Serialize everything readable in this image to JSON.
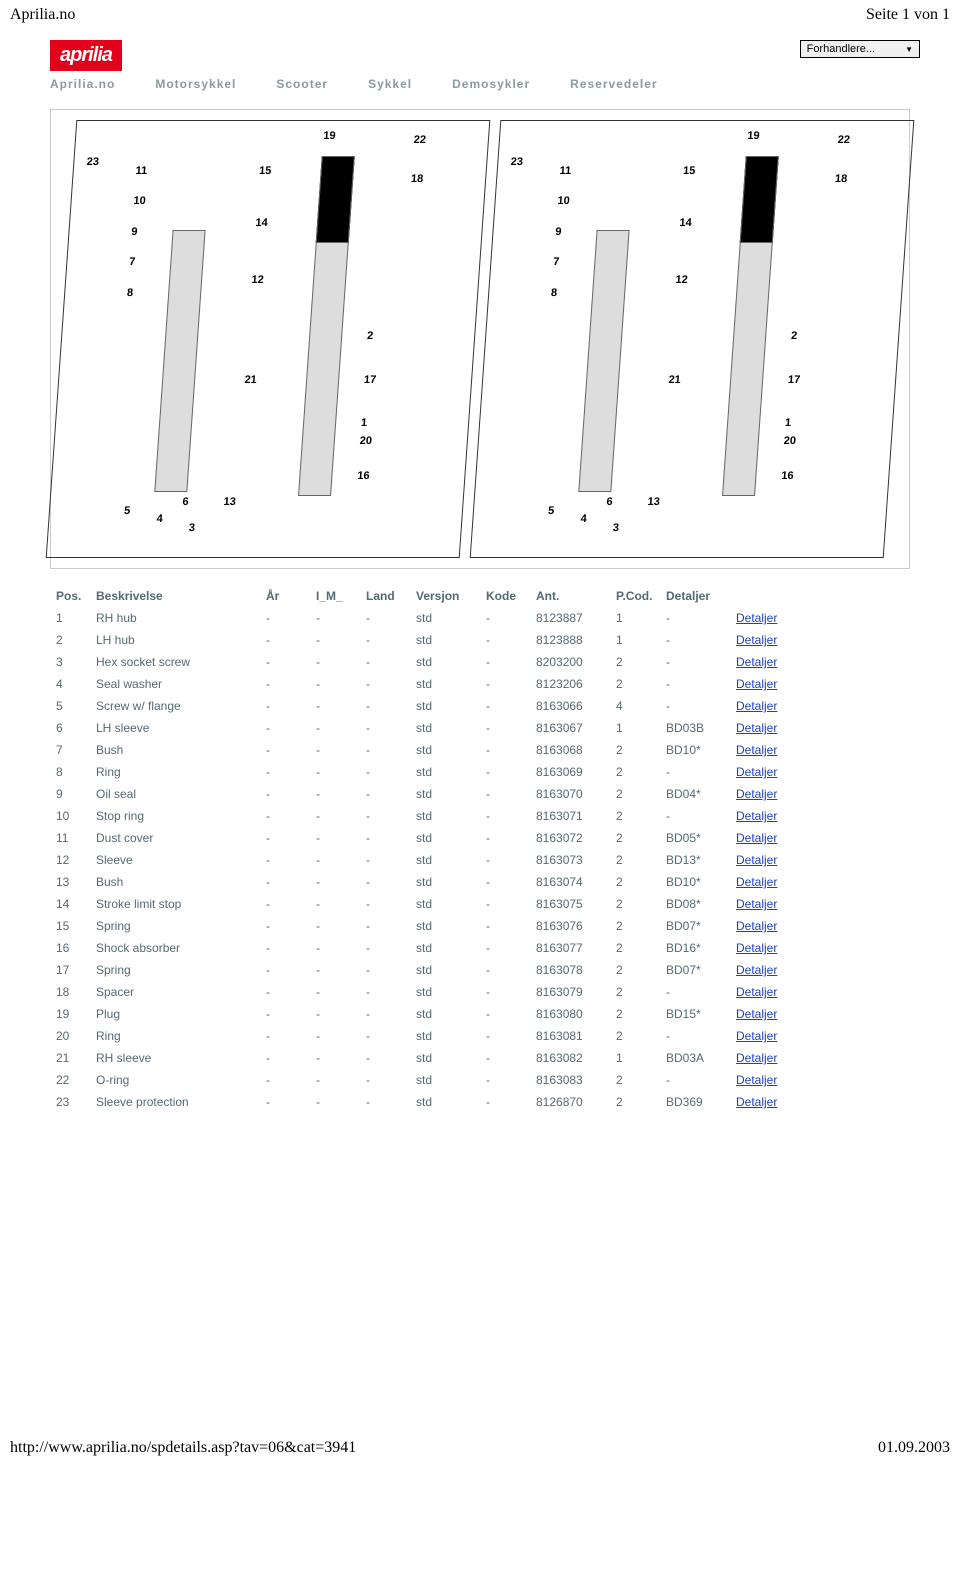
{
  "header": {
    "left": "Aprilia.no",
    "right": "Seite 1 von 1"
  },
  "logo": "aprilia",
  "dropdown": "Forhandlere...",
  "nav": [
    "Aprilia.no",
    "Motorsykkel",
    "Scooter",
    "Sykkel",
    "Demosykler",
    "Reservedeler"
  ],
  "diagram_labels": [
    "23",
    "11",
    "10",
    "9",
    "7",
    "8",
    "19",
    "15",
    "14",
    "22",
    "18",
    "12",
    "2",
    "21",
    "17",
    "1",
    "20",
    "16",
    "6",
    "5",
    "4",
    "3",
    "13"
  ],
  "columns": [
    "Pos.",
    "Beskrivelse",
    "År",
    "I_M_",
    "Land",
    "Versjon",
    "Kode",
    "Ant.",
    "P.Cod.",
    "Detaljer"
  ],
  "detail_label": "Detaljer",
  "rows": [
    {
      "pos": "1",
      "desc": "RH hub",
      "aar": "-",
      "im": "-",
      "land": "-",
      "ver": "std",
      "kode": "-",
      "code": "8123887",
      "ant": "1",
      "pcod": "-"
    },
    {
      "pos": "2",
      "desc": "LH hub",
      "aar": "-",
      "im": "-",
      "land": "-",
      "ver": "std",
      "kode": "-",
      "code": "8123888",
      "ant": "1",
      "pcod": "-"
    },
    {
      "pos": "3",
      "desc": "Hex socket screw",
      "aar": "-",
      "im": "-",
      "land": "-",
      "ver": "std",
      "kode": "-",
      "code": "8203200",
      "ant": "2",
      "pcod": "-"
    },
    {
      "pos": "4",
      "desc": "Seal washer",
      "aar": "-",
      "im": "-",
      "land": "-",
      "ver": "std",
      "kode": "-",
      "code": "8123206",
      "ant": "2",
      "pcod": "-"
    },
    {
      "pos": "5",
      "desc": "Screw w/ flange",
      "aar": "-",
      "im": "-",
      "land": "-",
      "ver": "std",
      "kode": "-",
      "code": "8163066",
      "ant": "4",
      "pcod": "-"
    },
    {
      "pos": "6",
      "desc": "LH sleeve",
      "aar": "-",
      "im": "-",
      "land": "-",
      "ver": "std",
      "kode": "-",
      "code": "8163067",
      "ant": "1",
      "pcod": "BD03B"
    },
    {
      "pos": "7",
      "desc": "Bush",
      "aar": "-",
      "im": "-",
      "land": "-",
      "ver": "std",
      "kode": "-",
      "code": "8163068",
      "ant": "2",
      "pcod": "BD10*"
    },
    {
      "pos": "8",
      "desc": "Ring",
      "aar": "-",
      "im": "-",
      "land": "-",
      "ver": "std",
      "kode": "-",
      "code": "8163069",
      "ant": "2",
      "pcod": "-"
    },
    {
      "pos": "9",
      "desc": "Oil seal",
      "aar": "-",
      "im": "-",
      "land": "-",
      "ver": "std",
      "kode": "-",
      "code": "8163070",
      "ant": "2",
      "pcod": "BD04*"
    },
    {
      "pos": "10",
      "desc": "Stop ring",
      "aar": "-",
      "im": "-",
      "land": "-",
      "ver": "std",
      "kode": "-",
      "code": "8163071",
      "ant": "2",
      "pcod": "-"
    },
    {
      "pos": "11",
      "desc": "Dust cover",
      "aar": "-",
      "im": "-",
      "land": "-",
      "ver": "std",
      "kode": "-",
      "code": "8163072",
      "ant": "2",
      "pcod": "BD05*"
    },
    {
      "pos": "12",
      "desc": "Sleeve",
      "aar": "-",
      "im": "-",
      "land": "-",
      "ver": "std",
      "kode": "-",
      "code": "8163073",
      "ant": "2",
      "pcod": "BD13*"
    },
    {
      "pos": "13",
      "desc": "Bush",
      "aar": "-",
      "im": "-",
      "land": "-",
      "ver": "std",
      "kode": "-",
      "code": "8163074",
      "ant": "2",
      "pcod": "BD10*"
    },
    {
      "pos": "14",
      "desc": "Stroke limit stop",
      "aar": "-",
      "im": "-",
      "land": "-",
      "ver": "std",
      "kode": "-",
      "code": "8163075",
      "ant": "2",
      "pcod": "BD08*"
    },
    {
      "pos": "15",
      "desc": "Spring",
      "aar": "-",
      "im": "-",
      "land": "-",
      "ver": "std",
      "kode": "-",
      "code": "8163076",
      "ant": "2",
      "pcod": "BD07*"
    },
    {
      "pos": "16",
      "desc": "Shock absorber",
      "aar": "-",
      "im": "-",
      "land": "-",
      "ver": "std",
      "kode": "-",
      "code": "8163077",
      "ant": "2",
      "pcod": "BD16*"
    },
    {
      "pos": "17",
      "desc": "Spring",
      "aar": "-",
      "im": "-",
      "land": "-",
      "ver": "std",
      "kode": "-",
      "code": "8163078",
      "ant": "2",
      "pcod": "BD07*"
    },
    {
      "pos": "18",
      "desc": "Spacer",
      "aar": "-",
      "im": "-",
      "land": "-",
      "ver": "std",
      "kode": "-",
      "code": "8163079",
      "ant": "2",
      "pcod": "-"
    },
    {
      "pos": "19",
      "desc": "Plug",
      "aar": "-",
      "im": "-",
      "land": "-",
      "ver": "std",
      "kode": "-",
      "code": "8163080",
      "ant": "2",
      "pcod": "BD15*"
    },
    {
      "pos": "20",
      "desc": "Ring",
      "aar": "-",
      "im": "-",
      "land": "-",
      "ver": "std",
      "kode": "-",
      "code": "8163081",
      "ant": "2",
      "pcod": "-"
    },
    {
      "pos": "21",
      "desc": "RH sleeve",
      "aar": "-",
      "im": "-",
      "land": "-",
      "ver": "std",
      "kode": "-",
      "code": "8163082",
      "ant": "1",
      "pcod": "BD03A"
    },
    {
      "pos": "22",
      "desc": "O-ring",
      "aar": "-",
      "im": "-",
      "land": "-",
      "ver": "std",
      "kode": "-",
      "code": "8163083",
      "ant": "2",
      "pcod": "-"
    },
    {
      "pos": "23",
      "desc": "Sleeve protection",
      "aar": "-",
      "im": "-",
      "land": "-",
      "ver": "std",
      "kode": "-",
      "code": "8126870",
      "ant": "2",
      "pcod": "BD369"
    }
  ],
  "footer": {
    "left": "http://www.aprilia.no/spdetails.asp?tav=06&cat=3941",
    "right": "01.09.2003"
  }
}
